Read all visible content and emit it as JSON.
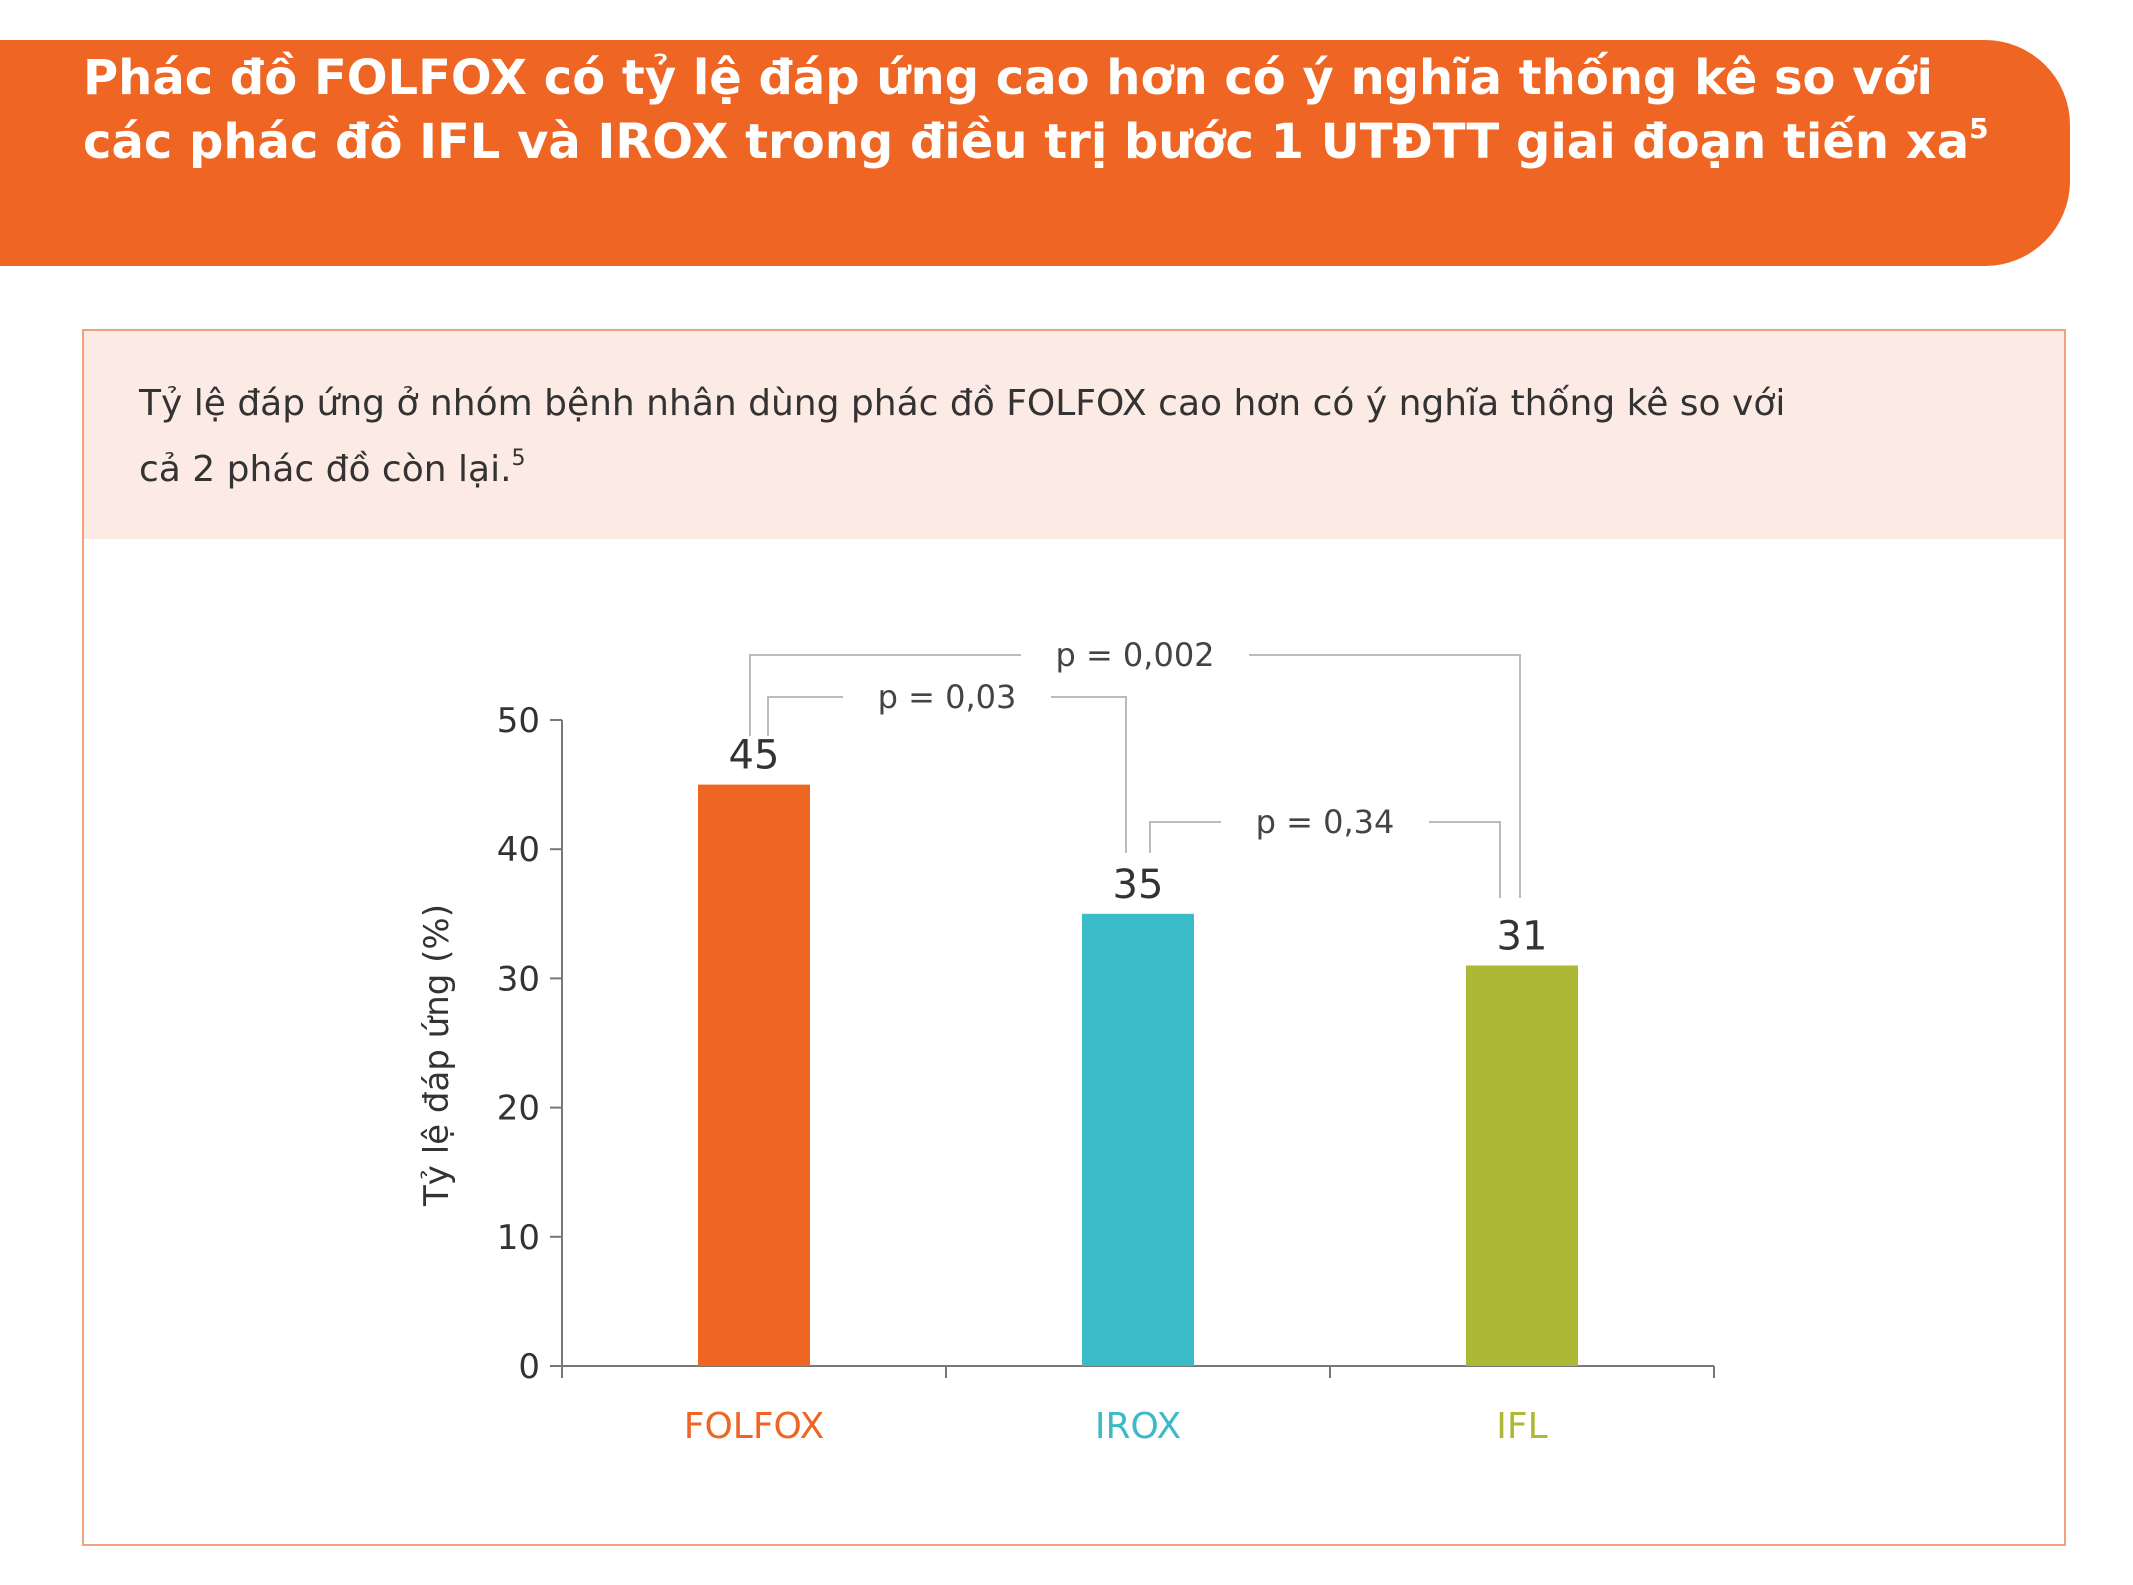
{
  "header": {
    "title_line1": "Phác đồ FOLFOX có tỷ lệ đáp ứng cao hơn có ý nghĩa thống kê so với",
    "title_line2": "các phác đồ IFL và IROX trong điều trị bước 1 UTĐTT giai đoạn tiến xa",
    "title_ref": "5"
  },
  "panel": {
    "text_line1": "Tỷ lệ đáp ứng ở nhóm bệnh nhân dùng phác đồ FOLFOX cao hơn có ý nghĩa thống kê so với",
    "text_line2": "cả 2 phác đồ còn lại.",
    "text_ref": "5"
  },
  "colors": {
    "accent": "#ef6624",
    "folfox": "#ef6624",
    "irox": "#3bbac8",
    "ifl": "#aeb837"
  },
  "chart_data": {
    "type": "bar",
    "categories": [
      "FOLFOX",
      "IROX",
      "IFL"
    ],
    "values": [
      45,
      35,
      31
    ],
    "value_labels": [
      "45",
      "35",
      "31"
    ],
    "colors": [
      "#ef6624",
      "#3bbac8",
      "#aeb837"
    ],
    "title": "",
    "xlabel": "",
    "ylabel": "Tỷ lệ đáp ứng (%)",
    "ylim": [
      0,
      50
    ],
    "yticks": [
      0,
      10,
      20,
      30,
      40,
      50
    ],
    "ytick_labels": [
      "0",
      "10",
      "20",
      "30",
      "40",
      "50"
    ],
    "grid": false,
    "annotations": [
      {
        "from": "FOLFOX",
        "to": "IROX",
        "label": "p = 0,03"
      },
      {
        "from": "FOLFOX",
        "to": "IFL",
        "label": "p = 0,002"
      },
      {
        "from": "IROX",
        "to": "IFL",
        "label": "p = 0,34"
      }
    ]
  }
}
